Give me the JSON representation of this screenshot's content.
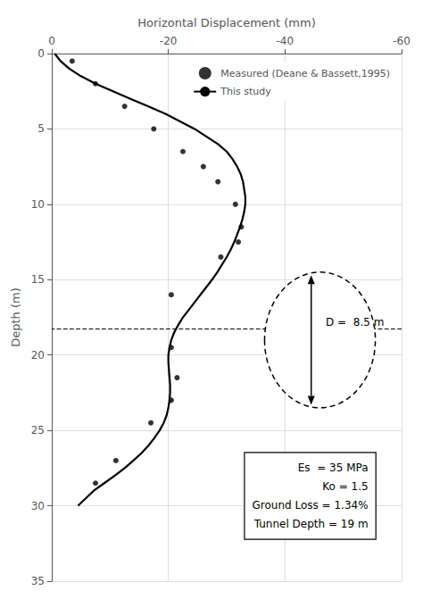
{
  "chart_data": {
    "type": "line",
    "xlabel": "Horizontal Displacement (mm)",
    "ylabel": "Depth (m)",
    "xlim": [
      0,
      -60
    ],
    "ylim": [
      35,
      0
    ],
    "xticks": [
      0,
      -20,
      -40,
      -60
    ],
    "yticks": [
      0,
      5,
      10,
      15,
      20,
      25,
      30,
      35
    ],
    "grid": true,
    "legend": "upper right",
    "series": [
      {
        "name": "Measured (Deane & Bassett,1995)",
        "type": "scatter",
        "marker": "circle",
        "color": "#000000",
        "x": [
          -3.5,
          -7.5,
          -12.5,
          -17.5,
          -22.5,
          -26.0,
          -28.5,
          -31.5,
          -32.5,
          -32.0,
          -29.0,
          -20.5,
          -20.5,
          -21.5,
          -20.5,
          -17.0,
          -11.0,
          -7.5
        ],
        "y": [
          0.5,
          2.0,
          3.5,
          5.0,
          6.5,
          7.5,
          8.5,
          10.0,
          11.5,
          12.5,
          13.5,
          16.0,
          19.5,
          21.5,
          23.0,
          24.5,
          27.0,
          28.5
        ]
      },
      {
        "name": "This study",
        "type": "line",
        "color": "#000000",
        "x": [
          -0.5,
          -1.5,
          -3.0,
          -5.0,
          -7.5,
          -10.5,
          -13.5,
          -16.5,
          -19.5,
          -22.0,
          -24.5,
          -26.5,
          -28.5,
          -30.0,
          -31.0,
          -31.8,
          -32.4,
          -32.8,
          -33.0,
          -33.2,
          -33.2,
          -33.0,
          -32.7,
          -32.3,
          -31.8,
          -31.3,
          -30.7,
          -30.0,
          -29.2,
          -28.4,
          -27.5,
          -26.5,
          -25.5,
          -24.5,
          -23.5,
          -22.5,
          -21.7,
          -21.0,
          -20.5,
          -20.2,
          -20.0,
          -20.0,
          -20.1,
          -20.2,
          -20.3,
          -20.3,
          -20.2,
          -20.0,
          -19.7,
          -19.2,
          -18.5,
          -17.6,
          -16.6,
          -15.4,
          -14.0,
          -12.5,
          -10.8,
          -9.0,
          -7.2,
          -4.5
        ],
        "y": [
          0.0,
          0.5,
          1.0,
          1.5,
          2.0,
          2.5,
          3.0,
          3.5,
          4.0,
          4.5,
          5.0,
          5.5,
          6.0,
          6.5,
          7.0,
          7.5,
          8.0,
          8.5,
          9.0,
          9.5,
          10.0,
          10.5,
          11.0,
          11.5,
          12.0,
          12.5,
          13.0,
          13.5,
          14.0,
          14.5,
          15.0,
          15.5,
          16.0,
          16.5,
          17.0,
          17.5,
          18.0,
          18.5,
          19.0,
          19.5,
          20.0,
          20.5,
          21.0,
          21.5,
          22.0,
          22.5,
          23.0,
          23.5,
          24.0,
          24.5,
          25.0,
          25.5,
          26.0,
          26.5,
          27.0,
          27.5,
          28.0,
          28.5,
          29.0,
          30.0
        ]
      }
    ],
    "hline": 18.25,
    "ellipse": {
      "x": -46.0,
      "y": 19.0,
      "rx": 9.5,
      "ry": 4.5
    },
    "arrow": {
      "x": -44.5,
      "y_top": 14.7,
      "y_bottom": 23.3
    },
    "annotations": [
      {
        "text": "D =  8.5 m",
        "x": -47.0,
        "y": 17.8
      },
      {
        "text": "Es  = 35 MPa\nKo = 1.5\nGround Loss = 1.34%\nTunnel Depth = 19 m",
        "x": -55.5,
        "y": 26.5
      }
    ]
  }
}
